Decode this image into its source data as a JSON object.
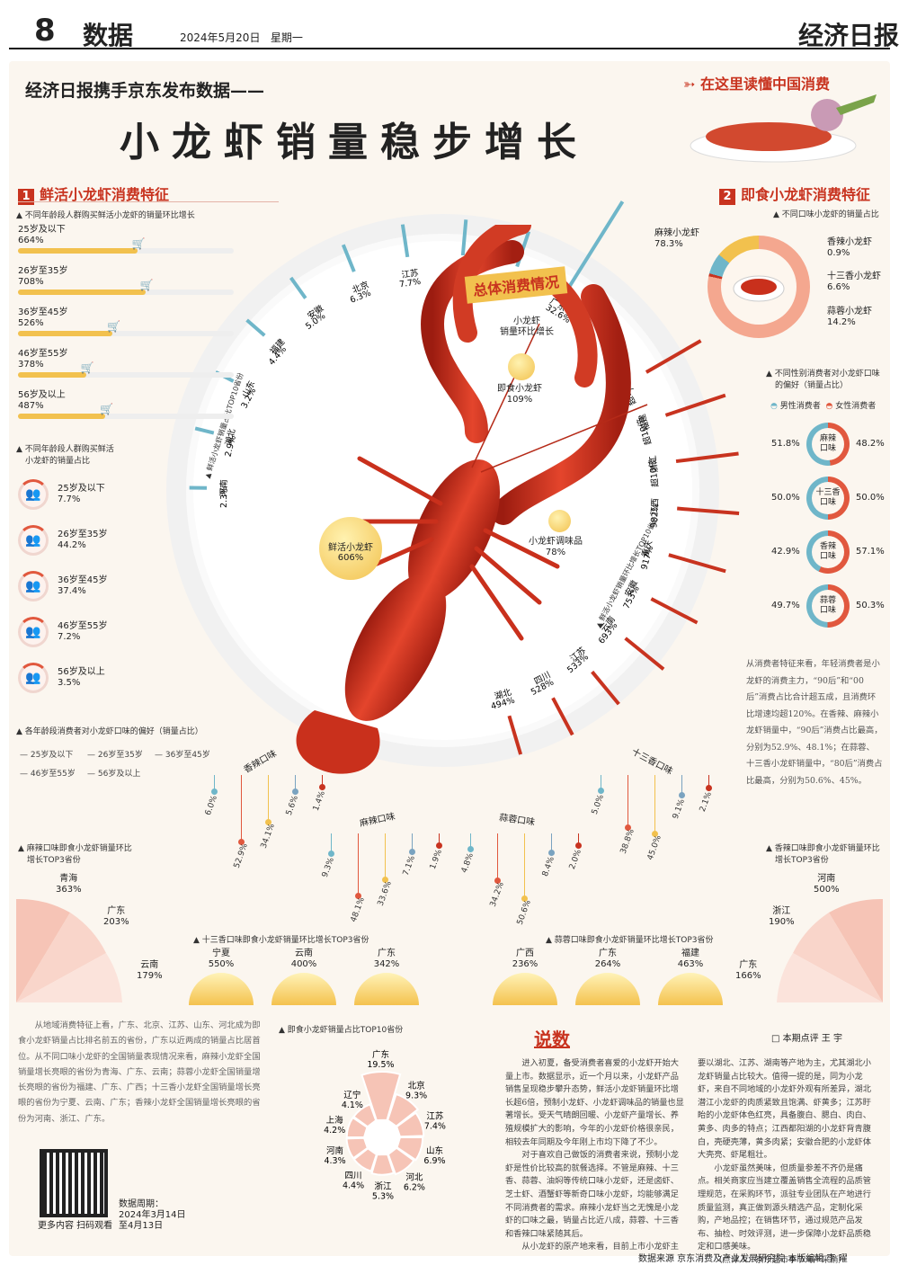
{
  "header": {
    "page_num": "8",
    "section": "数据",
    "date": "2024年5月20日",
    "weekday": "星期一",
    "logo": "经济日报"
  },
  "kicker": "经济日报携手京东发布数据——",
  "title": "小龙虾销量稳步增长",
  "tag": "在这里读懂中国消费",
  "sec1": {
    "num": "1",
    "title": "鲜活小龙虾消费特征"
  },
  "sec2": {
    "num": "2",
    "title": "即食小龙虾消费特征"
  },
  "age_growth": {
    "subtitle": "▲ 不同年龄段人群购买鲜活小龙虾的销量环比增长",
    "items": [
      {
        "label": "25岁及以下",
        "value": "664%",
        "pct": 0.664
      },
      {
        "label": "26岁至35岁",
        "value": "708%",
        "pct": 0.708
      },
      {
        "label": "36岁至45岁",
        "value": "526%",
        "pct": 0.526
      },
      {
        "label": "46岁至55岁",
        "value": "378%",
        "pct": 0.378
      },
      {
        "label": "56岁及以上",
        "value": "487%",
        "pct": 0.487
      }
    ]
  },
  "age_share": {
    "subtitle1": "▲ 不同年龄段人群购买鲜活",
    "subtitle2": "小龙虾的销量占比",
    "items": [
      {
        "label": "25岁及以下",
        "value": "7.7%"
      },
      {
        "label": "26岁至35岁",
        "value": "44.2%"
      },
      {
        "label": "36岁至45岁",
        "value": "37.4%"
      },
      {
        "label": "46岁至55岁",
        "value": "7.2%"
      },
      {
        "label": "56岁及以上",
        "value": "3.5%"
      }
    ]
  },
  "flavor_pref": {
    "subtitle": "▲ 各年龄段消费者对小龙虾口味的偏好（销量占比）",
    "legend": [
      "25岁及以下",
      "26岁至35岁",
      "36岁至45岁",
      "46岁至55岁",
      "56岁及以上"
    ],
    "groups": [
      {
        "name": "香辣口味",
        "values": [
          "6.0%",
          "52.9%",
          "34.1%",
          "5.6%",
          "1.4%"
        ]
      },
      {
        "name": "麻辣口味",
        "values": [
          "9.3%",
          "48.1%",
          "33.6%",
          "7.1%",
          "1.9%"
        ]
      },
      {
        "name": "蒜蓉口味",
        "values": [
          "4.8%",
          "34.2%",
          "50.6%",
          "8.4%",
          "2.0%"
        ]
      },
      {
        "name": "十三香口味",
        "values": [
          "5.0%",
          "38.8%",
          "45.0%",
          "9.1%",
          "2.1%"
        ]
      }
    ]
  },
  "center": {
    "label": "总体消费情况",
    "items": [
      {
        "label": "小龙虾",
        "label2": "销量环比增长"
      },
      {
        "label": "即食小龙虾",
        "value": "109%"
      },
      {
        "label": "鲜活小龙虾",
        "value": "606%"
      },
      {
        "label": "小龙虾调味品",
        "value": "78%"
      }
    ]
  },
  "province_share": {
    "title": "▲ 鲜活小龙虾销量占比TOP10省份",
    "items": [
      {
        "p": "广东",
        "v": "32.6%"
      },
      {
        "p": "四川",
        "v": "9.1%"
      },
      {
        "p": "浙江",
        "v": "8.7%"
      },
      {
        "p": "江苏",
        "v": "7.7%"
      },
      {
        "p": "北京",
        "v": "6.3%"
      },
      {
        "p": "安徽",
        "v": "5.0%"
      },
      {
        "p": "福建",
        "v": "4.4%"
      },
      {
        "p": "山东",
        "v": "3.2%"
      },
      {
        "p": "湖北",
        "v": "2.9%"
      },
      {
        "p": "河南",
        "v": "2.3%"
      }
    ]
  },
  "province_growth": {
    "title": "▲ 鲜活小龙虾销量环比增长TOP10省份",
    "items": [
      {
        "p": "广东",
        "v": "超10倍"
      },
      {
        "p": "福建",
        "v": "超10倍"
      },
      {
        "p": "浙江",
        "v": "超10倍"
      },
      {
        "p": "江西",
        "v": "982%"
      },
      {
        "p": "重庆",
        "v": "917%"
      },
      {
        "p": "安徽",
        "v": "753%"
      },
      {
        "p": "云南",
        "v": "693%"
      },
      {
        "p": "江苏",
        "v": "533%"
      },
      {
        "p": "四川",
        "v": "528%"
      },
      {
        "p": "湖北",
        "v": "494%"
      }
    ]
  },
  "flavor_share": {
    "subtitle": "▲ 不同口味小龙虾的销量占比",
    "items": [
      {
        "label": "麻辣小龙虾",
        "value": "78.3%"
      },
      {
        "label": "香辣小龙虾",
        "value": "0.9%"
      },
      {
        "label": "十三香小龙虾",
        "value": "6.6%"
      },
      {
        "label": "蒜蓉小龙虾",
        "value": "14.2%"
      }
    ]
  },
  "gender": {
    "subtitle1": "▲ 不同性别消费者对小龙虾口味",
    "subtitle2": "的偏好（销量占比）",
    "male": "男性消费者",
    "female": "女性消费者",
    "items": [
      {
        "name": "麻辣口味",
        "m": "51.8%",
        "f": "48.2%",
        "mv": 51.8
      },
      {
        "name": "十三香口味",
        "m": "50.0%",
        "f": "50.0%",
        "mv": 50.0
      },
      {
        "name": "香辣口味",
        "m": "42.9%",
        "f": "57.1%",
        "mv": 42.9
      },
      {
        "name": "蒜蓉口味",
        "m": "49.7%",
        "f": "50.3%",
        "mv": 49.7
      }
    ]
  },
  "right_text": "从消费者特征来看，年轻消费者是小龙虾的消费主力，“90后”和“00后”消费占比合计超五成，且消费环比增速均超120%。在香辣、麻辣小龙虾销量中，“90后”消费占比最高，分别为52.9%、48.1%；在蒜蓉、十三香小龙虾销量中，“80后”消费占比最高，分别为50.6%、45%。",
  "mala_top3": {
    "title1": "▲ 麻辣口味即食小龙虾销量环比",
    "title2": "增长TOP3省份",
    "items": [
      {
        "p": "青海",
        "v": "363%"
      },
      {
        "p": "广东",
        "v": "203%"
      },
      {
        "p": "云南",
        "v": "179%"
      }
    ]
  },
  "xiangla_top3": {
    "title1": "▲ 香辣口味即食小龙虾销量环比",
    "title2": "增长TOP3省份",
    "items": [
      {
        "p": "河南",
        "v": "500%"
      },
      {
        "p": "浙江",
        "v": "190%"
      },
      {
        "p": "广东",
        "v": "166%"
      }
    ]
  },
  "shisan_top3": {
    "title": "▲ 十三香口味即食小龙虾销量环比增长TOP3省份",
    "items": [
      {
        "p": "宁夏",
        "v": "550%"
      },
      {
        "p": "云南",
        "v": "400%"
      },
      {
        "p": "广东",
        "v": "342%"
      }
    ]
  },
  "suanrong_top3": {
    "title": "▲ 蒜蓉口味即食小龙虾销量环比增长TOP3省份",
    "items": [
      {
        "p": "广西",
        "v": "236%"
      },
      {
        "p": "广东",
        "v": "264%"
      },
      {
        "p": "福建",
        "v": "463%"
      }
    ]
  },
  "left_text": "从地域消费特征上看，广东、北京、江苏、山东、河北成为即食小龙虾销量占比排名前五的省份，广东以近两成的销量占比居首位。从不同口味小龙虾的全国销量表现情况来看，麻辣小龙虾全国销量增长亮眼的省份为青海、广东、云南；蒜蓉小龙虾全国销量增长亮眼的省份为福建、广东、广西；十三香小龙虾全国销量增长亮眼的省份为宁夏、云南、广东；香辣小龙虾全国销量增长亮眼的省份为河南、浙江、广东。",
  "instant_top10": {
    "title": "▲ 即食小龙虾销量占比TOP10省份",
    "items": [
      {
        "p": "广东",
        "v": "19.5%"
      },
      {
        "p": "北京",
        "v": "9.3%"
      },
      {
        "p": "江苏",
        "v": "7.4%"
      },
      {
        "p": "山东",
        "v": "6.9%"
      },
      {
        "p": "河北",
        "v": "6.2%"
      },
      {
        "p": "浙江",
        "v": "5.3%"
      },
      {
        "p": "四川",
        "v": "4.4%"
      },
      {
        "p": "河南",
        "v": "4.3%"
      },
      {
        "p": "上海",
        "v": "4.2%"
      },
      {
        "p": "辽宁",
        "v": "4.1%"
      }
    ]
  },
  "qr": {
    "caption": "更多内容 扫码观看",
    "period_label": "数据周期：",
    "period1": "2024年3月14日",
    "period2": "至4月13日"
  },
  "shuoshu": {
    "title": "说数",
    "reviewer": "□ 本期点评  王 宇",
    "col1": "进入初夏，备受消费者喜爱的小龙虾开始大量上市。数据显示，近一个月以来，小龙虾产品销售呈现稳步攀升态势，鲜活小龙虾销量环比增长超6倍，预制小龙虾、小龙虾调味品的销量也显著增长。受天气晴朗回暖、小龙虾产量增长、养殖规模扩大的影响，今年的小龙虾价格很亲民，相较去年同期及今年刚上市均下降了不少。",
    "col1b": "对于喜欢自己做饭的消费者来说，预制小龙虾是性价比较高的就餐选择。不管是麻辣、十三香、蒜蓉、油焖等传统口味小龙虾，还是卤虾、芝士虾、酒蟹虾等新奇口味小龙虾，均能够满足不同消费者的需求。麻辣小龙虾当之无愧是小龙虾的口味之最，销量占比近八成，蒜蓉、十三香和香辣口味紧随其后。",
    "col1c": "从小龙虾的原产地来看，目前上市小龙虾主",
    "col2": "要以湖北、江苏、湖南等产地为主，尤其湖北小龙虾销量占比较大。值得一提的是，同为小龙虾，来自不同地域的小龙虾外观有所差异，湖北潜江小龙虾的肉质紧致且饱满、虾黄多；江苏盱眙的小龙虾体色红亮，具备腹白、腮白、肉白、黄多、肉多的特点；江西都阳湖的小龙虾背青腹白，壳硬壳薄，黄多肉紧；安徽合肥的小龙虾体大壳亮、虾尾粗壮。",
    "col2b": "小龙虾虽然美味，但质量参差不齐仍是痛点。相关商家应当建立覆盖销售全流程的品质管理规范，在采购环节，派驻专业团队在产地进行质量监测，真正做到源头精选产品，定制化采购，产地品控；在销售环节，通过规范产品发布、抽检、时效评测，进一步保障小龙虾品质稳定和口感美味。",
    "col2c": "（点评人：京东超市季节海产采销）"
  },
  "footer": "数据来源  京东消费及产业发展研究院  本版编辑  李  曜",
  "colors": {
    "red": "#c8331f",
    "yellow": "#f2c14e",
    "blue": "#6fb6c9"
  }
}
